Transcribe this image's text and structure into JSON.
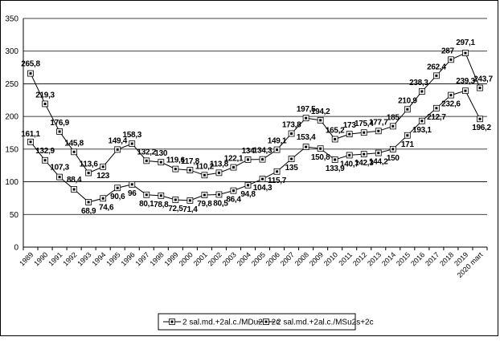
{
  "chart_data": {
    "type": "line",
    "title": "",
    "xlabel": "",
    "ylabel": "",
    "ylim": [
      0,
      350
    ],
    "yticks": [
      0,
      50,
      100,
      150,
      200,
      250,
      300,
      350
    ],
    "grid": true,
    "legend_position": "bottom",
    "categories": [
      "1989",
      "1990",
      "1991",
      "1992",
      "1993",
      "1994",
      "1995",
      "1996",
      "1997",
      "1998",
      "1999",
      "2000",
      "2001",
      "2002",
      "2003",
      "2004",
      "2005",
      "2006",
      "2007",
      "2008",
      "2009",
      "2010",
      "2011",
      "2012",
      "2013",
      "2014",
      "2015",
      "2016",
      "2017",
      "2018",
      "2019",
      "2020 mart"
    ],
    "series": [
      {
        "name": "2 sal.md.+2al.c./MDu2s+2c",
        "color": "#000000",
        "values": [
          265.8,
          219.3,
          176.9,
          145.8,
          113.6,
          123,
          149.4,
          158.3,
          132.2,
          130,
          119.6,
          117.8,
          110.2,
          113.8,
          122.1,
          134,
          134.3,
          149.1,
          173.8,
          197.5,
          194.2,
          165.2,
          173,
          175.4,
          177.7,
          185,
          210.9,
          238.3,
          262.4,
          287,
          297.1,
          243.7
        ],
        "labels": [
          "265,8",
          "219,3",
          "176,9",
          "145,8",
          "113,6",
          "123",
          "149,4",
          "158,3",
          "132,2",
          "130",
          "119,6",
          "117,8",
          "110,2",
          "113,8",
          "122,1",
          "134",
          "134,3",
          "149,1",
          "173,8",
          "197,5",
          "194,2",
          "165,2",
          "173",
          "175,4",
          "177,7",
          "185",
          "210,9",
          "238,3",
          "262,4",
          "287",
          "297,1",
          "243,7"
        ]
      },
      {
        "name": "2 sal.md.+2al.c./MSu2s+2c",
        "color": "#000000",
        "values": [
          161.1,
          132.9,
          107.3,
          88.4,
          68.9,
          74.6,
          90.6,
          96,
          80.1,
          78.8,
          72.5,
          71.4,
          79.8,
          80.5,
          86.4,
          94.8,
          104.3,
          115.7,
          135,
          153.4,
          150.8,
          133.9,
          140.7,
          142.3,
          144.2,
          150,
          171,
          193.1,
          212.7,
          232.6,
          239.3,
          196.2
        ],
        "labels": [
          "161,1",
          "132,9",
          "107,3",
          "88,4",
          "68,9",
          "74,6",
          "90,6",
          "96",
          "80,1",
          "78,8",
          "72,5",
          "71,4",
          "79,8",
          "80,5",
          "86,4",
          "94,8",
          "104,3",
          "115,7",
          "135",
          "153,4",
          "150,8",
          "133,9",
          "140,7",
          "142,3",
          "144,2",
          "150",
          "171",
          "193,1",
          "212,7",
          "232,6",
          "239,3",
          "196,2"
        ]
      }
    ]
  }
}
